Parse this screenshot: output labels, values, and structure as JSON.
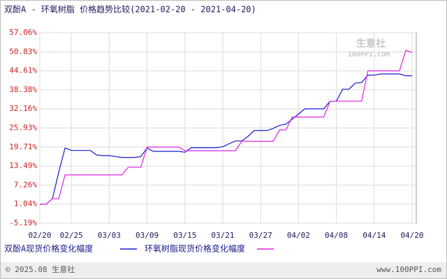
{
  "chart_data": {
    "type": "line",
    "title": "双酚A - 环氧树脂 价格趋势比较(2021-02-20 - 2021-04-20)",
    "watermark": {
      "name": "生意社",
      "url": "100PPI.COM"
    },
    "categories": [
      "02/20",
      null,
      null,
      null,
      null,
      "02/25",
      null,
      null,
      null,
      null,
      null,
      "03/03",
      null,
      null,
      null,
      null,
      null,
      "03/09",
      null,
      null,
      null,
      null,
      null,
      "03/15",
      null,
      null,
      null,
      null,
      null,
      "03/21",
      null,
      null,
      null,
      null,
      null,
      "03/27",
      null,
      null,
      null,
      null,
      null,
      "04/02",
      null,
      null,
      null,
      null,
      null,
      "04/08",
      null,
      null,
      null,
      null,
      null,
      "04/14",
      null,
      null,
      null,
      null,
      null,
      "04/20"
    ],
    "series": [
      {
        "name": "双酚A现货价格变化幅度",
        "color": "#1a1acc",
        "values": [
          1.04,
          1.04,
          2.8,
          11.5,
          19.4,
          18.6,
          18.6,
          18.6,
          18.6,
          17.1,
          16.9,
          16.9,
          16.6,
          16.3,
          16.3,
          16.3,
          16.6,
          19.4,
          18.3,
          18.3,
          18.3,
          18.3,
          18.3,
          18.0,
          19.5,
          19.5,
          19.5,
          19.5,
          19.5,
          19.8,
          20.8,
          21.7,
          21.7,
          23.2,
          25.1,
          25.1,
          25.1,
          25.8,
          26.8,
          27.2,
          28.8,
          30.5,
          32.2,
          32.2,
          32.2,
          32.2,
          34.7,
          34.7,
          38.6,
          38.6,
          40.6,
          40.8,
          43.2,
          43.2,
          43.6,
          43.6,
          43.6,
          43.6,
          43.0,
          43.0
        ]
      },
      {
        "name": "环氧树脂现货价格变化幅度",
        "color": "#e020e0",
        "values": [
          1.04,
          1.04,
          2.8,
          2.8,
          10.6,
          10.6,
          10.6,
          10.6,
          10.6,
          10.6,
          10.6,
          10.6,
          10.6,
          10.6,
          13.1,
          13.1,
          13.1,
          19.7,
          19.7,
          19.7,
          19.7,
          19.7,
          19.7,
          18.5,
          18.5,
          18.5,
          18.5,
          18.5,
          18.5,
          18.5,
          18.5,
          18.5,
          21.6,
          21.6,
          21.6,
          21.6,
          21.6,
          21.6,
          25.3,
          25.3,
          29.5,
          29.5,
          29.5,
          29.5,
          29.5,
          29.5,
          34.7,
          34.7,
          34.7,
          34.7,
          34.7,
          34.7,
          44.6,
          44.6,
          44.6,
          44.6,
          44.6,
          44.6,
          51.3,
          50.6
        ]
      }
    ],
    "ylim": [
      -5.19,
      57.06
    ],
    "yticks": [
      {
        "value": 57.06,
        "label": "57.06%"
      },
      {
        "value": 50.83,
        "label": "50.83%"
      },
      {
        "value": 44.61,
        "label": "44.61%"
      },
      {
        "value": 38.38,
        "label": "38.38%"
      },
      {
        "value": 32.16,
        "label": "32.16%"
      },
      {
        "value": 25.93,
        "label": "25.93%"
      },
      {
        "value": 19.71,
        "label": "19.71%"
      },
      {
        "value": 13.49,
        "label": "13.49%"
      },
      {
        "value": 7.26,
        "label": "7.26%"
      },
      {
        "value": 1.04,
        "label": "1.04%"
      },
      {
        "value": -5.19,
        "label": "-5.19%"
      }
    ],
    "grid": true
  },
  "footer": {
    "copyright": "© 2025.08 生意社",
    "url": "www.100PPI.com"
  }
}
